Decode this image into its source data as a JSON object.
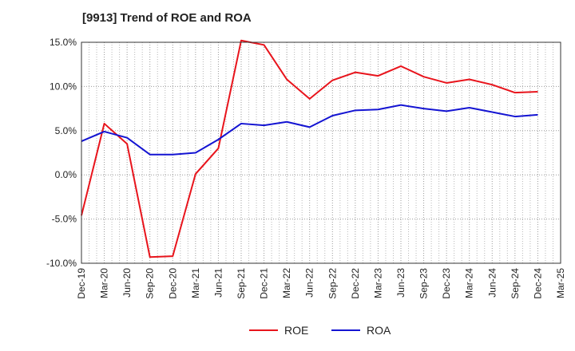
{
  "chart_data": {
    "type": "line",
    "title": "[9913]  Trend of ROE and ROA",
    "xlabel": "",
    "ylabel": "",
    "x_ticks": [
      "Dec-19",
      "Mar-20",
      "Jun-20",
      "Sep-20",
      "Dec-20",
      "Mar-21",
      "Jun-21",
      "Sep-21",
      "Dec-21",
      "Mar-22",
      "Jun-22",
      "Sep-22",
      "Dec-22",
      "Mar-23",
      "Jun-23",
      "Sep-23",
      "Dec-23",
      "Mar-24",
      "Jun-24",
      "Sep-24",
      "Dec-24",
      "Mar-25"
    ],
    "ylim": [
      -10.0,
      15.0
    ],
    "y_ticks": [
      "-10.0%",
      "-5.0%",
      "0.0%",
      "5.0%",
      "10.0%",
      "15.0%"
    ],
    "y_tick_values": [
      -10,
      -5,
      0,
      5,
      10,
      15
    ],
    "grid": true,
    "legend_position": "bottom-center",
    "series": [
      {
        "name": "ROE",
        "color": "#e8141c",
        "x": [
          "Dec-19",
          "Mar-20",
          "Jun-20",
          "Sep-20",
          "Dec-20",
          "Mar-21",
          "Jun-21",
          "Sep-21",
          "Dec-21",
          "Mar-22",
          "Jun-22",
          "Sep-22",
          "Dec-22",
          "Mar-23",
          "Jun-23",
          "Sep-23",
          "Dec-23",
          "Mar-24",
          "Jun-24",
          "Sep-24",
          "Dec-24"
        ],
        "values": [
          -4.6,
          5.8,
          3.5,
          -9.3,
          -9.2,
          0.1,
          3.0,
          15.2,
          14.7,
          10.8,
          8.6,
          10.7,
          11.6,
          11.2,
          12.3,
          11.1,
          10.4,
          10.8,
          10.2,
          9.3,
          9.4
        ]
      },
      {
        "name": "ROA",
        "color": "#1414d2",
        "x": [
          "Dec-19",
          "Mar-20",
          "Jun-20",
          "Sep-20",
          "Dec-20",
          "Mar-21",
          "Jun-21",
          "Sep-21",
          "Dec-21",
          "Mar-22",
          "Jun-22",
          "Sep-22",
          "Dec-22",
          "Mar-23",
          "Jun-23",
          "Sep-23",
          "Dec-23",
          "Mar-24",
          "Jun-24",
          "Sep-24",
          "Dec-24"
        ],
        "values": [
          3.8,
          4.9,
          4.2,
          2.3,
          2.3,
          2.5,
          4.0,
          5.8,
          5.6,
          6.0,
          5.4,
          6.7,
          7.3,
          7.4,
          7.9,
          7.5,
          7.2,
          7.6,
          7.1,
          6.6,
          6.8
        ]
      }
    ]
  }
}
